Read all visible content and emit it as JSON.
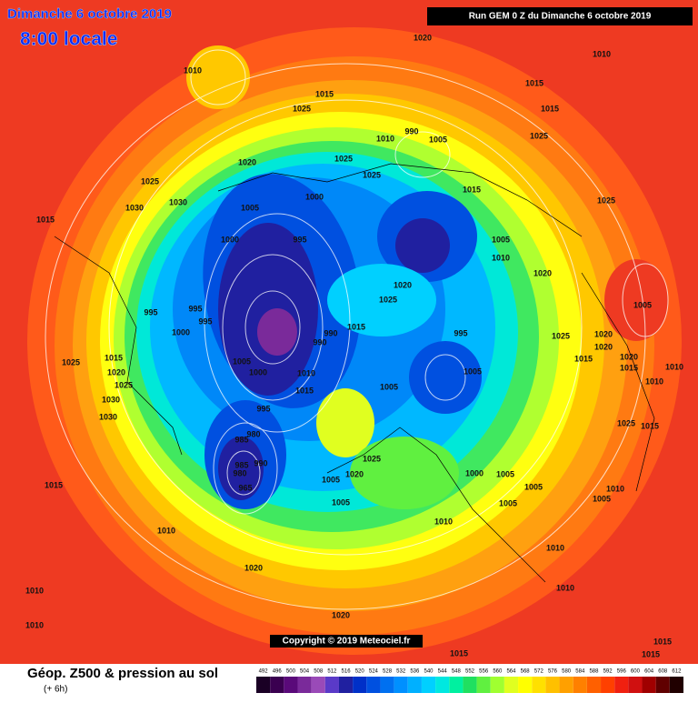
{
  "header": {
    "title": "Dimanche 6 octobre 2019",
    "time": "8:00 locale",
    "run": "Run GEM 0 Z du Dimanche 6 octobre 2019"
  },
  "copyright": "Copyright © 2019 Meteociel.fr",
  "footer": {
    "title": "Géop. Z500 & pression au sol",
    "lead": "(+ 6h)"
  },
  "scale": {
    "values": [
      492,
      496,
      500,
      504,
      508,
      512,
      516,
      520,
      524,
      528,
      532,
      536,
      540,
      544,
      548,
      552,
      556,
      560,
      564,
      568,
      572,
      576,
      580,
      584,
      588,
      592,
      596,
      600,
      604,
      608,
      612
    ],
    "colors": [
      "#1a0025",
      "#3a0050",
      "#5a0a7a",
      "#7a2a9a",
      "#9a4ab8",
      "#5a3ac8",
      "#2020a0",
      "#0030c8",
      "#0050e0",
      "#0070f0",
      "#0090ff",
      "#00b0ff",
      "#00d0ff",
      "#00e8e0",
      "#00f0a0",
      "#20e060",
      "#60f040",
      "#a0ff30",
      "#e0ff20",
      "#ffff00",
      "#ffe000",
      "#ffc000",
      "#ffa000",
      "#ff8000",
      "#ff6000",
      "#ff4000",
      "#f02010",
      "#d01010",
      "#a00000",
      "#600000",
      "#200000"
    ]
  },
  "isobar_labels": [
    1020,
    1010,
    1010,
    1015,
    1015,
    1025,
    1015,
    990,
    1005,
    1010,
    1025,
    1020,
    1025,
    1025,
    1025,
    1030,
    1000,
    1015,
    1025,
    1005,
    1030,
    1015,
    995,
    1000,
    1005,
    1010,
    1020,
    1020,
    1025,
    995,
    995,
    995,
    1000,
    990,
    990,
    1015,
    1025,
    1020,
    1020,
    1005,
    995,
    1025,
    1015,
    1005,
    1000,
    1010,
    1020,
    1005,
    1015,
    1005,
    1015,
    1020,
    1010,
    1015,
    1010,
    1025,
    1030,
    995,
    1030,
    1015,
    1025,
    980,
    985,
    990,
    1025,
    1020,
    1005,
    1000,
    1005,
    1005,
    985,
    980,
    965,
    1015,
    1005,
    1005,
    1010,
    1005,
    1010,
    1010,
    1010,
    1020,
    1010,
    1010,
    1020,
    1010,
    1015,
    1015,
    1015
  ]
}
